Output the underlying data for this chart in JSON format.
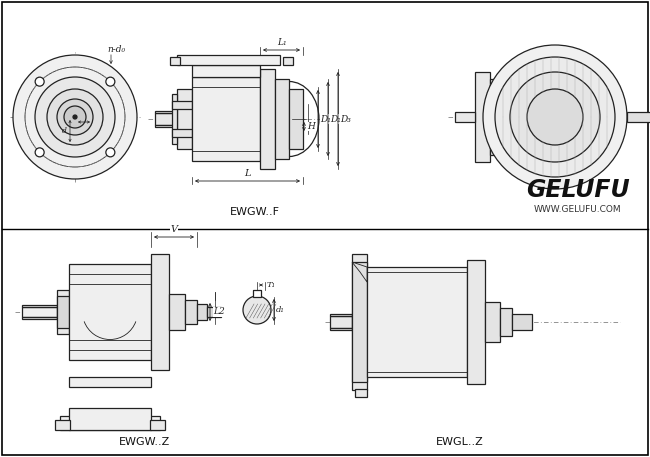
{
  "bg_color": "#ffffff",
  "line_color": "#222222",
  "dim_color": "#222222",
  "title1": "EWGW..Z",
  "title2": "EWGL..Z",
  "title3": "EWGW..F",
  "logo_text": "GELUFU",
  "logo_sub": "WWW.GELUFU.COM",
  "fig_width": 6.5,
  "fig_height": 4.57,
  "dpi": 100
}
